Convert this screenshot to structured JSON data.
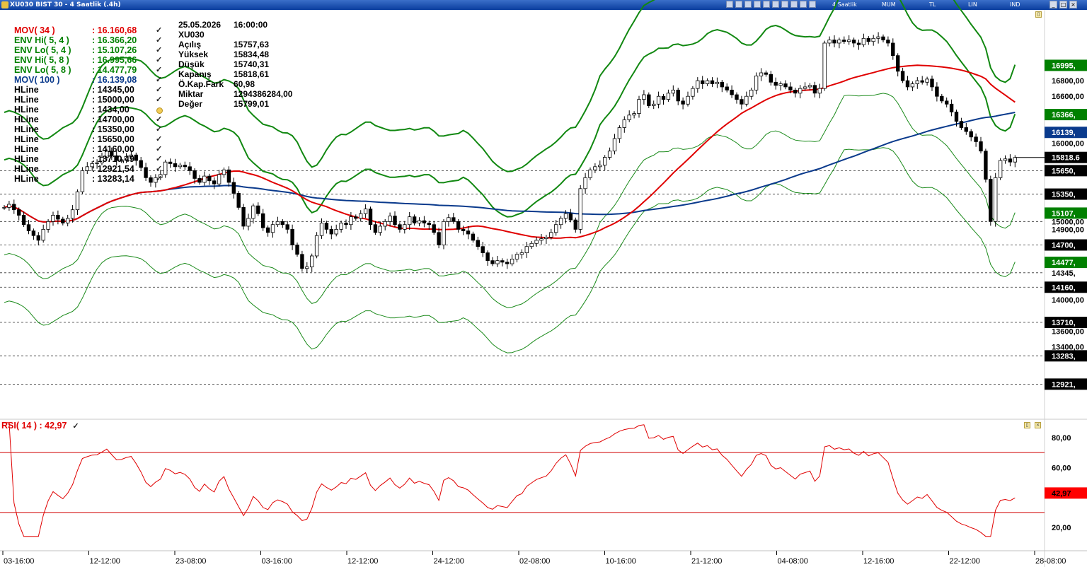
{
  "window": {
    "title": "XU030 BIST 30 - 4 Saatlik (.4h)",
    "toolbar": {
      "period": "4 Saatlik",
      "chart_type": "MUM",
      "currency": "TL",
      "scale": "LIN",
      "indicators": "IND"
    }
  },
  "info_panel": [
    {
      "k": "25.05.2026",
      "v": "16:00:00"
    },
    {
      "k": "XU030",
      "v": ""
    },
    {
      "k": "Açılış",
      "v": "15757,63"
    },
    {
      "k": "Yüksek",
      "v": "15834,48"
    },
    {
      "k": "Düşük",
      "v": "15740,31"
    },
    {
      "k": "Kapanış",
      "v": "15818,61"
    },
    {
      "k": "Ö.Kap.Fark",
      "v": "60,98"
    },
    {
      "k": "Miktar",
      "v": "1294386284,00"
    },
    {
      "k": "Değer",
      "v": "15799,01"
    }
  ],
  "legend": [
    {
      "name": "MOV( 34 )",
      "value": ": 16.160,68",
      "color": "#e00000",
      "mark": "check"
    },
    {
      "name": "ENV Hi( 5, 4 )",
      "value": ": 16.366,20",
      "color": "#008000",
      "mark": "check"
    },
    {
      "name": "ENV Lo( 5, 4 )",
      "value": ": 15.107,26",
      "color": "#008000",
      "mark": "check"
    },
    {
      "name": "ENV Hi( 5, 8 )",
      "value": ": 16.995,66",
      "color": "#008000",
      "mark": "check"
    },
    {
      "name": "ENV Lo( 5, 8 )",
      "value": ": 14.477,79",
      "color": "#008000",
      "mark": "check"
    },
    {
      "name": "MOV( 100 )",
      "value": ": 16.139,08",
      "color": "#0a3a8c",
      "mark": "check"
    },
    {
      "name": "HLine",
      "value": ": 14345,00",
      "color": "#000000",
      "mark": "check"
    },
    {
      "name": "HLine",
      "value": ": 15000,00",
      "color": "#000000",
      "mark": "check"
    },
    {
      "name": "HLine",
      "value": ": 1434,00",
      "color": "#000000",
      "mark": "dot"
    },
    {
      "name": "HLine",
      "value": ": 14700,00",
      "color": "#000000",
      "mark": "check"
    },
    {
      "name": "HLine",
      "value": ": 15350,00",
      "color": "#000000",
      "mark": "check"
    },
    {
      "name": "HLine",
      "value": ": 15650,00",
      "color": "#000000",
      "mark": "check"
    },
    {
      "name": "HLine",
      "value": ": 14160,00",
      "color": "#000000",
      "mark": "check"
    },
    {
      "name": "HLine",
      "value": ": 13710,49",
      "color": "#000000",
      "mark": "check"
    },
    {
      "name": "HLine",
      "value": ": 12921,54",
      "color": "#000000",
      "mark": "check"
    },
    {
      "name": "HLine",
      "value": ": 13283,14",
      "color": "#000000",
      "mark": "check"
    }
  ],
  "chart_data": {
    "type": "candlestick",
    "symbol": "XU030",
    "price_axis_ticks": [
      "16800,00",
      "16600,00",
      "16000,00",
      "15000,00",
      "14900,00",
      "14345,",
      "14000,00",
      "13600,00",
      "13400,00"
    ],
    "price_axis_badges": [
      {
        "label": "16995,",
        "value": 16995.66,
        "color": "#008000"
      },
      {
        "label": "16366,",
        "value": 16366.2,
        "color": "#008000"
      },
      {
        "label": "16139,",
        "value": 16139.08,
        "color": "#0a3a8c"
      },
      {
        "label": "15818.6",
        "value": 15818.61,
        "color": "#000000"
      },
      {
        "label": "15650,",
        "value": 15650,
        "color": "#000000"
      },
      {
        "label": "15350,",
        "value": 15350,
        "color": "#000000"
      },
      {
        "label": "15107,",
        "value": 15107.26,
        "color": "#008000"
      },
      {
        "label": "14700,",
        "value": 14700,
        "color": "#000000"
      },
      {
        "label": "14477,",
        "value": 14477.79,
        "color": "#008000"
      },
      {
        "label": "14160,",
        "value": 14160,
        "color": "#000000"
      },
      {
        "label": "13710,",
        "value": 13710.49,
        "color": "#000000"
      },
      {
        "label": "13283,",
        "value": 13283.14,
        "color": "#000000"
      },
      {
        "label": "12921,",
        "value": 12921.54,
        "color": "#000000"
      }
    ],
    "hlines": [
      15650,
      15350,
      15000,
      14700,
      14345,
      14160,
      13710.49,
      13283.14,
      12921.54
    ],
    "x_ticks": [
      "03-16:00",
      "12-12:00",
      "23-08:00",
      "03-16:00",
      "12-12:00",
      "24-12:00",
      "02-08:00",
      "10-16:00",
      "21-12:00",
      "04-08:00",
      "12-16:00",
      "22-12:00",
      "28-08:00"
    ],
    "close": [
      15180,
      15220,
      15150,
      15080,
      14960,
      14880,
      14820,
      14760,
      14900,
      15000,
      15080,
      15030,
      14980,
      15040,
      15150,
      15380,
      15650,
      15700,
      15740,
      15750,
      15820,
      15900,
      15840,
      15780,
      15790,
      15830,
      15850,
      15780,
      15690,
      15560,
      15500,
      15560,
      15600,
      15760,
      15740,
      15700,
      15720,
      15700,
      15650,
      15550,
      15500,
      15580,
      15520,
      15480,
      15600,
      15660,
      15500,
      15360,
      15180,
      14940,
      15040,
      15200,
      15100,
      14920,
      14860,
      14960,
      15000,
      14960,
      14900,
      14700,
      14580,
      14400,
      14420,
      14560,
      14820,
      14980,
      14900,
      14840,
      14900,
      14980,
      14960,
      15060,
      15040,
      15100,
      15160,
      14960,
      14860,
      14940,
      15000,
      15070,
      14960,
      14900,
      14960,
      15060,
      14980,
      15010,
      14980,
      14960,
      14860,
      14700,
      15000,
      15050,
      15000,
      14900,
      14880,
      14840,
      14760,
      14680,
      14600,
      14500,
      14460,
      14500,
      14480,
      14460,
      14520,
      14580,
      14600,
      14680,
      14720,
      14760,
      14780,
      14800,
      14860,
      14960,
      15040,
      15100,
      15020,
      14900,
      15420,
      15560,
      15660,
      15700,
      15720,
      15820,
      15900,
      16060,
      16200,
      16300,
      16360,
      16380,
      16560,
      16620,
      16480,
      16500,
      16600,
      16560,
      16640,
      16680,
      16540,
      16500,
      16600,
      16700,
      16800,
      16760,
      16800,
      16760,
      16780,
      16720,
      16680,
      16620,
      16560,
      16500,
      16600,
      16680,
      16860,
      16900,
      16880,
      16780,
      16740,
      16760,
      16720,
      16680,
      16640,
      16700,
      16720,
      16740,
      16640,
      16700,
      17280,
      17320,
      17280,
      17320,
      17300,
      17320,
      17280,
      17260,
      17340,
      17300,
      17340,
      17360,
      17320,
      17280,
      17120,
      16920,
      16800,
      16720,
      16760,
      16800,
      16780,
      16820,
      16720,
      16600,
      16540,
      16500,
      16400,
      16280,
      16200,
      16150,
      16080,
      16020,
      15900,
      15540,
      15000,
      15560,
      15780,
      15800,
      15760,
      15818
    ]
  },
  "rsi": {
    "label": "RSI( 14 ) : 42,97",
    "value_badge": "42,97",
    "levels": [
      70,
      30
    ],
    "ticks": [
      "80,00",
      "60,00",
      "20,00"
    ]
  }
}
